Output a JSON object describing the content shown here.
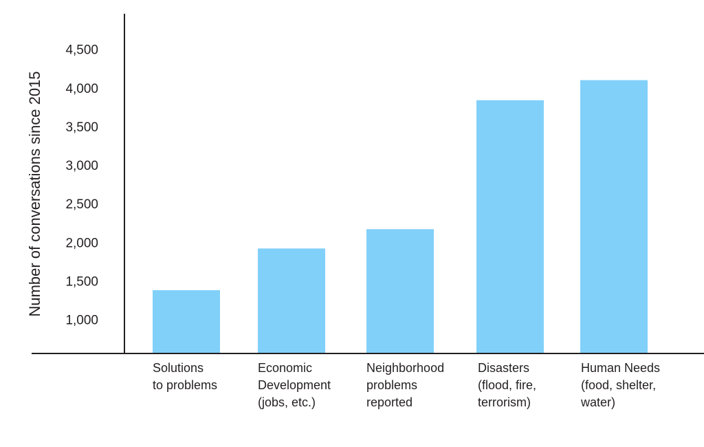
{
  "chart_data": {
    "type": "bar",
    "categories": [
      [
        "Solutions",
        "to problems"
      ],
      [
        "Economic",
        "Development",
        "(jobs, etc.)"
      ],
      [
        "Neighborhood",
        "problems",
        "reported"
      ],
      [
        "Disasters",
        "(flood, fire,",
        "terrorism)"
      ],
      [
        "Human Needs",
        "(food, shelter,",
        "water)"
      ]
    ],
    "values": [
      1380,
      1920,
      2170,
      3840,
      4100
    ],
    "ylabel": "Number of conversations since 2015",
    "ylim": [
      560,
      4960
    ],
    "yticks": [
      1000,
      1500,
      2000,
      2500,
      3000,
      3500,
      4000,
      4500
    ],
    "ytick_labels": [
      "1,000",
      "1,500",
      "2,000",
      "2,500",
      "3,000",
      "3,500",
      "4,000",
      "4,500"
    ],
    "bar_color": "#81d0f9",
    "axis_color": "#231f20",
    "grid": false,
    "legend": "none"
  }
}
